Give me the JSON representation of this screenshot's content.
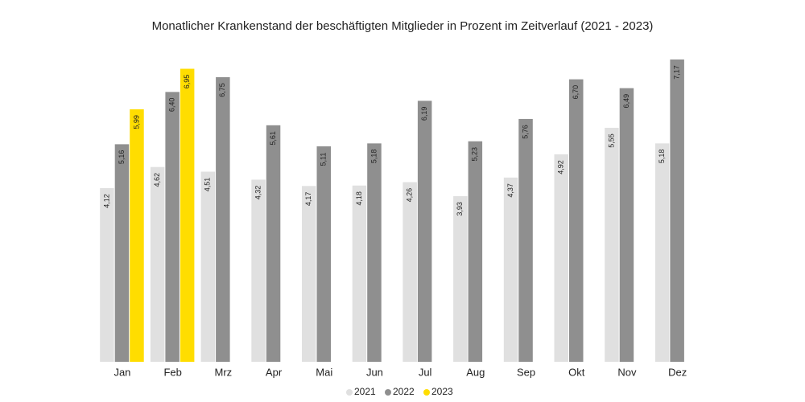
{
  "chart_data": {
    "type": "bar",
    "title": "Monatlicher Krankenstand der beschäftigten Mitglieder in Prozent im Zeitverlauf (2021 - 2023)",
    "categories": [
      "Jan",
      "Feb",
      "Mrz",
      "Apr",
      "Mai",
      "Jun",
      "Jul",
      "Aug",
      "Sep",
      "Okt",
      "Nov",
      "Dez"
    ],
    "series": [
      {
        "name": "2021",
        "color": "#e0e0e0",
        "values": [
          4.12,
          4.62,
          4.51,
          4.32,
          4.17,
          4.18,
          4.26,
          3.93,
          4.37,
          4.92,
          5.55,
          5.18
        ],
        "value_labels": [
          "4,12",
          "4,62",
          "4,51",
          "4,32",
          "4,17",
          "4,18",
          "4,26",
          "3,93",
          "4,37",
          "4,92",
          "5,55",
          "5,18"
        ]
      },
      {
        "name": "2022",
        "color": "#8f8f8f",
        "values": [
          5.16,
          6.4,
          6.75,
          5.61,
          5.11,
          5.18,
          6.19,
          5.23,
          5.76,
          6.7,
          6.49,
          7.17
        ],
        "value_labels": [
          "5,16",
          "6,40",
          "6,75",
          "5,61",
          "5,11",
          "5,18",
          "6,19",
          "5,23",
          "5,76",
          "6,70",
          "6,49",
          "7,17"
        ]
      },
      {
        "name": "2023",
        "color": "#ffdd00",
        "values": [
          5.99,
          6.95,
          null,
          null,
          null,
          null,
          null,
          null,
          null,
          null,
          null,
          null
        ],
        "value_labels": [
          "5,99",
          "6,95",
          null,
          null,
          null,
          null,
          null,
          null,
          null,
          null,
          null,
          null
        ]
      }
    ],
    "legend": "bottom"
  }
}
